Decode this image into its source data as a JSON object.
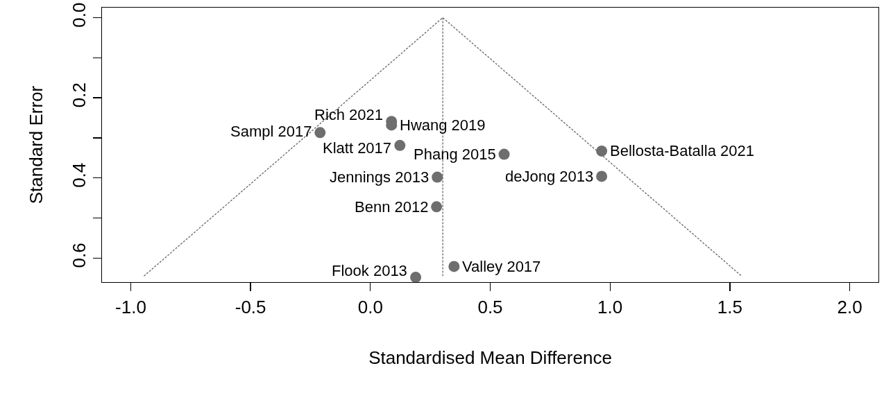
{
  "chart_data": {
    "type": "scatter",
    "xlabel": "Standardised Mean Difference",
    "ylabel": "Standard Error",
    "xlim": [
      -1.12,
      2.12
    ],
    "xticks": [
      {
        "value": -1,
        "label": "-1.0"
      },
      {
        "value": -0.5,
        "label": "-0.5"
      },
      {
        "value": 0,
        "label": "0.0"
      },
      {
        "value": 0.5,
        "label": "0.5"
      },
      {
        "value": 1,
        "label": "1.0"
      },
      {
        "value": 1.5,
        "label": "1.5"
      },
      {
        "value": 2,
        "label": "2.0"
      }
    ],
    "ylim": [
      0.66,
      -0.025
    ],
    "yticks": [
      {
        "value": 0,
        "label": "0.0"
      },
      {
        "value": 0.1,
        "label": null
      },
      {
        "value": 0.2,
        "label": "0.2"
      },
      {
        "value": 0.3,
        "label": null
      },
      {
        "value": 0.4,
        "label": "0.4"
      },
      {
        "value": 0.5,
        "label": null
      },
      {
        "value": 0.6,
        "label": "0.6"
      }
    ],
    "grid": false,
    "marker": "circle",
    "series": [
      {
        "type": "line",
        "color": "#666666",
        "line_style": "dotted",
        "marker": "none",
        "x": [
          -0.945,
          0.302,
          1.549
        ],
        "values": [
          0.645,
          0,
          0.645
        ]
      },
      {
        "type": "line",
        "color": "#666666",
        "line_style": "dotted",
        "marker": "none",
        "x": [
          0.302,
          0.302
        ],
        "values": [
          0,
          0.645
        ]
      },
      {
        "color": "#6e6e6e",
        "x": [
          0.088,
          0.088,
          -0.21,
          0.123,
          0.558,
          0.965,
          0.279,
          0.965,
          0.276,
          0.349,
          0.189
        ],
        "values": [
          0.259,
          0.268,
          0.287,
          0.319,
          0.341,
          0.333,
          0.398,
          0.396,
          0.472,
          0.621,
          0.648
        ]
      }
    ],
    "annotations": [
      {
        "text": "Rich 2021",
        "x": 0.088,
        "y": 0.259
      },
      {
        "text": "Hwang 2019",
        "x": 0.088,
        "y": 0.268
      },
      {
        "text": "Sampl 2017",
        "x": -0.21,
        "y": 0.287
      },
      {
        "text": "Klatt 2017",
        "x": 0.123,
        "y": 0.319
      },
      {
        "text": "Phang 2015",
        "x": 0.558,
        "y": 0.341
      },
      {
        "text": "Bellosta-Batalla 2021",
        "x": 0.965,
        "y": 0.333
      },
      {
        "text": "Jennings 2013",
        "x": 0.279,
        "y": 0.398
      },
      {
        "text": "deJong 2013",
        "x": 0.965,
        "y": 0.396
      },
      {
        "text": "Benn 2012",
        "x": 0.276,
        "y": 0.472
      },
      {
        "text": "Valley 2017",
        "x": 0.349,
        "y": 0.621
      },
      {
        "text": "Flook 2013",
        "x": 0.189,
        "y": 0.648
      }
    ]
  }
}
